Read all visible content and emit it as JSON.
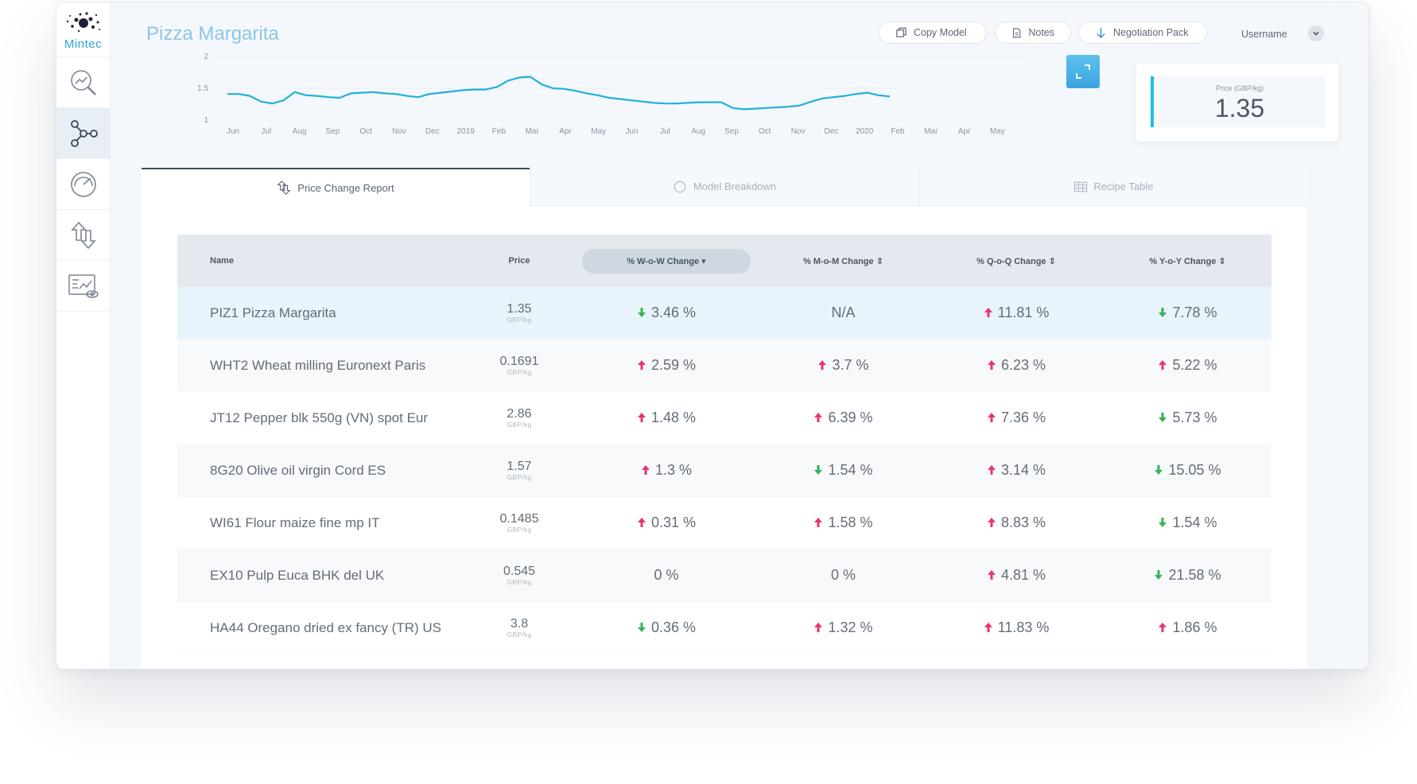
{
  "brand": {
    "name": "Mintec"
  },
  "page": {
    "title": "Pizza Margarita"
  },
  "header": {
    "copy_model": "Copy Model",
    "notes": "Notes",
    "negotiation_pack": "Negotiation Pack",
    "username": "Username"
  },
  "nav": [
    {
      "icon": "search-chart-icon"
    },
    {
      "icon": "model-network-icon"
    },
    {
      "icon": "gauge-icon"
    },
    {
      "icon": "price-change-icon"
    },
    {
      "icon": "report-view-icon"
    }
  ],
  "price_card": {
    "label": "Price (GBP/kg)",
    "value": "1.35"
  },
  "chart_data": {
    "type": "line",
    "title": "",
    "xlabel": "",
    "ylabel": "",
    "y_ticks": [
      "2",
      "1.5",
      "1"
    ],
    "ylim": [
      1,
      2
    ],
    "x_ticks": [
      "Jun",
      "Jul",
      "Aug",
      "Sep",
      "Oct",
      "Nov",
      "Dec",
      "2019",
      "Feb",
      "Mar",
      "Apr",
      "May",
      "Jun",
      "Jul",
      "Aug",
      "Sep",
      "Oct",
      "Nov",
      "Dec",
      "2020",
      "Feb",
      "Mar",
      "Apr",
      "May"
    ],
    "grid": true,
    "series": [
      {
        "values": [
          1.41,
          1.41,
          1.38,
          1.29,
          1.26,
          1.31,
          1.44,
          1.39,
          1.38,
          1.36,
          1.35,
          1.42,
          1.43,
          1.44,
          1.42,
          1.41,
          1.38,
          1.36,
          1.41,
          1.43,
          1.45,
          1.47,
          1.48,
          1.48,
          1.52,
          1.62,
          1.67,
          1.68,
          1.56,
          1.5,
          1.49,
          1.46,
          1.42,
          1.39,
          1.35,
          1.33,
          1.31,
          1.29,
          1.27,
          1.26,
          1.26,
          1.27,
          1.28,
          1.28,
          1.28,
          1.19,
          1.17,
          1.18,
          1.19,
          1.2,
          1.21,
          1.23,
          1.29,
          1.34,
          1.36,
          1.38,
          1.41,
          1.43,
          1.39,
          1.37
        ]
      }
    ],
    "color": "#1fb1d9"
  },
  "tabs": [
    {
      "label": "Price Change Report",
      "icon": "price-change-icon"
    },
    {
      "label": "Model Breakdown",
      "icon": "circle-icon"
    },
    {
      "label": "Recipe Table",
      "icon": "table-icon"
    }
  ],
  "table": {
    "columns": {
      "name": "Name",
      "price": "Price",
      "wow": "% W-o-W Change",
      "mom": "% M-o-M Change",
      "qoq": "% Q-o-Q Change",
      "yoy": "% Y-o-Y Change"
    },
    "rows": [
      {
        "name": "PIZ1 Pizza Margarita",
        "price": "1.35",
        "unit": "GBP/kg",
        "wow": {
          "text": "3.46 %",
          "dir": "down"
        },
        "mom": {
          "text": "N/A",
          "dir": "none"
        },
        "qoq": {
          "text": "11.81 %",
          "dir": "up"
        },
        "yoy": {
          "text": "7.78 %",
          "dir": "down"
        }
      },
      {
        "name": "WHT2 Wheat milling Euronext Paris",
        "price": "0.1691",
        "unit": "GBP/kg",
        "wow": {
          "text": "2.59 %",
          "dir": "up"
        },
        "mom": {
          "text": "3.7 %",
          "dir": "up"
        },
        "qoq": {
          "text": "6.23 %",
          "dir": "up"
        },
        "yoy": {
          "text": "5.22 %",
          "dir": "up"
        }
      },
      {
        "name": "JT12 Pepper blk 550g (VN) spot Eur",
        "price": "2.86",
        "unit": "GBP/kg",
        "wow": {
          "text": "1.48 %",
          "dir": "up"
        },
        "mom": {
          "text": "6.39 %",
          "dir": "up"
        },
        "qoq": {
          "text": "7.36 %",
          "dir": "up"
        },
        "yoy": {
          "text": "5.73 %",
          "dir": "down"
        }
      },
      {
        "name": "8G20 Olive oil virgin Cord ES",
        "price": "1.57",
        "unit": "GBP/kg",
        "wow": {
          "text": "1.3 %",
          "dir": "up"
        },
        "mom": {
          "text": "1.54 %",
          "dir": "down"
        },
        "qoq": {
          "text": "3.14 %",
          "dir": "up"
        },
        "yoy": {
          "text": "15.05 %",
          "dir": "down"
        }
      },
      {
        "name": "WI61 Flour maize fine mp IT",
        "price": "0.1485",
        "unit": "GBP/kg",
        "wow": {
          "text": "0.31 %",
          "dir": "up"
        },
        "mom": {
          "text": "1.58 %",
          "dir": "up"
        },
        "qoq": {
          "text": "8.83 %",
          "dir": "up"
        },
        "yoy": {
          "text": "1.54 %",
          "dir": "down"
        }
      },
      {
        "name": "EX10 Pulp Euca BHK del UK",
        "price": "0.545",
        "unit": "GBP/kg",
        "wow": {
          "text": "0 %",
          "dir": "none"
        },
        "mom": {
          "text": "0 %",
          "dir": "none"
        },
        "qoq": {
          "text": "4.81 %",
          "dir": "up"
        },
        "yoy": {
          "text": "21.58 %",
          "dir": "down"
        }
      },
      {
        "name": "HA44 Oregano dried ex fancy (TR) US",
        "price": "3.8",
        "unit": "GBP/kg",
        "wow": {
          "text": "0.36 %",
          "dir": "down"
        },
        "mom": {
          "text": "1.32 %",
          "dir": "up"
        },
        "qoq": {
          "text": "11.83 %",
          "dir": "up"
        },
        "yoy": {
          "text": "1.86 %",
          "dir": "up"
        }
      }
    ]
  },
  "colors": {
    "up": "#e8336e",
    "down": "#36b35a",
    "accent": "#1fbfe0"
  }
}
